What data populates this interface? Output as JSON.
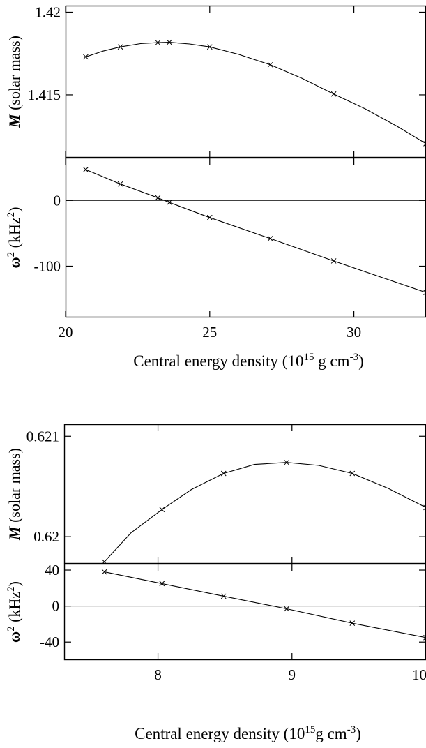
{
  "chart_data": [
    {
      "type": "line",
      "xlabel": {
        "text": "Central energy density (10",
        "exp1": "15",
        "mid": " g cm",
        "exp2": "-3",
        "end": ")"
      },
      "xlim": [
        20,
        32.5
      ],
      "xticks": [
        20,
        25,
        30
      ],
      "xtick_labels": [
        "20",
        "25",
        "30"
      ],
      "panels": [
        {
          "ylabel": {
            "sym": "M",
            "rest": " (solar mass)"
          },
          "ylim": [
            1.4112,
            1.4204
          ],
          "yticks": [
            1.415,
            1.42
          ],
          "ytick_labels": [
            "1.415",
            "1.42"
          ],
          "curve": {
            "x": [
              20.7,
              21.3,
              21.9,
              22.6,
              23.2,
              23.6,
              24.3,
              25.0,
              26.0,
              27.1,
              28.2,
              29.3,
              30.4,
              31.5,
              32.5
            ],
            "y": [
              1.4173,
              1.41765,
              1.4179,
              1.4181,
              1.41816,
              1.41818,
              1.41808,
              1.4179,
              1.41745,
              1.41682,
              1.416,
              1.41505,
              1.41415,
              1.4131,
              1.41205
            ]
          },
          "markers": {
            "x": [
              20.7,
              21.9,
              23.2,
              23.6,
              25.0,
              27.1,
              29.3,
              32.5
            ],
            "y": [
              1.4173,
              1.4179,
              1.41816,
              1.41818,
              1.4179,
              1.41682,
              1.41505,
              1.41205
            ]
          }
        },
        {
          "ylabel": {
            "sym": "ω",
            "exp": "2",
            "rest": " (kHz",
            "exp2": "2",
            "end": ")"
          },
          "ylim": [
            -178,
            65
          ],
          "yticks": [
            0,
            -100
          ],
          "ytick_labels": [
            "0",
            "-100"
          ],
          "hline": 0,
          "curve": {
            "x": [
              20.7,
              21.9,
              23.2,
              23.6,
              25.0,
              27.1,
              29.3,
              32.5
            ],
            "y": [
              47,
              25,
              4,
              -3,
              -26,
              -58,
              -92,
              -140
            ]
          },
          "markers": {
            "x": [
              20.7,
              21.9,
              23.2,
              23.6,
              25.0,
              27.1,
              29.3,
              32.5
            ],
            "y": [
              47,
              25,
              4,
              -3,
              -26,
              -58,
              -92,
              -140
            ]
          }
        }
      ]
    },
    {
      "type": "line",
      "xlabel": {
        "text": "Central energy density (10",
        "exp1": "15",
        "mid": "g cm",
        "exp2": "-3",
        "end": ")"
      },
      "xlim": [
        7.3,
        10.0
      ],
      "xticks": [
        8,
        9,
        10
      ],
      "xtick_labels": [
        "8",
        "9",
        "10"
      ],
      "panels": [
        {
          "ylabel": {
            "sym": "M",
            "rest": " (solar mass)"
          },
          "ylim": [
            0.61973,
            0.62112
          ],
          "yticks": [
            0.621,
            0.62
          ],
          "ytick_labels": [
            "0.621",
            "0.62"
          ],
          "curve": {
            "x": [
              7.6,
              7.8,
              8.03,
              8.25,
              8.49,
              8.72,
              8.96,
              9.2,
              9.45,
              9.72,
              10.0
            ],
            "y": [
              0.61975,
              0.62004,
              0.62027,
              0.62047,
              0.62063,
              0.62072,
              0.62074,
              0.62071,
              0.62063,
              0.62048,
              0.62029
            ]
          },
          "markers": {
            "x": [
              7.6,
              8.03,
              8.49,
              8.96,
              9.45,
              10.0
            ],
            "y": [
              0.61975,
              0.62027,
              0.62063,
              0.62074,
              0.62063,
              0.62029
            ]
          }
        },
        {
          "ylabel": {
            "sym": "ω",
            "exp": "2",
            "rest": " (kHz",
            "exp2": "2",
            "end": ")"
          },
          "ylim": [
            -60,
            47
          ],
          "yticks": [
            40,
            0,
            -40
          ],
          "ytick_labels": [
            "40",
            "0",
            "-40"
          ],
          "hline": 0,
          "curve": {
            "x": [
              7.6,
              8.03,
              8.49,
              8.96,
              9.45,
              10.0
            ],
            "y": [
              38,
              25,
              11,
              -3,
              -19,
              -35
            ]
          },
          "markers": {
            "x": [
              7.6,
              8.03,
              8.49,
              8.96,
              9.45,
              10.0
            ],
            "y": [
              38,
              25,
              11,
              -3,
              -19,
              -35
            ]
          }
        }
      ]
    }
  ]
}
